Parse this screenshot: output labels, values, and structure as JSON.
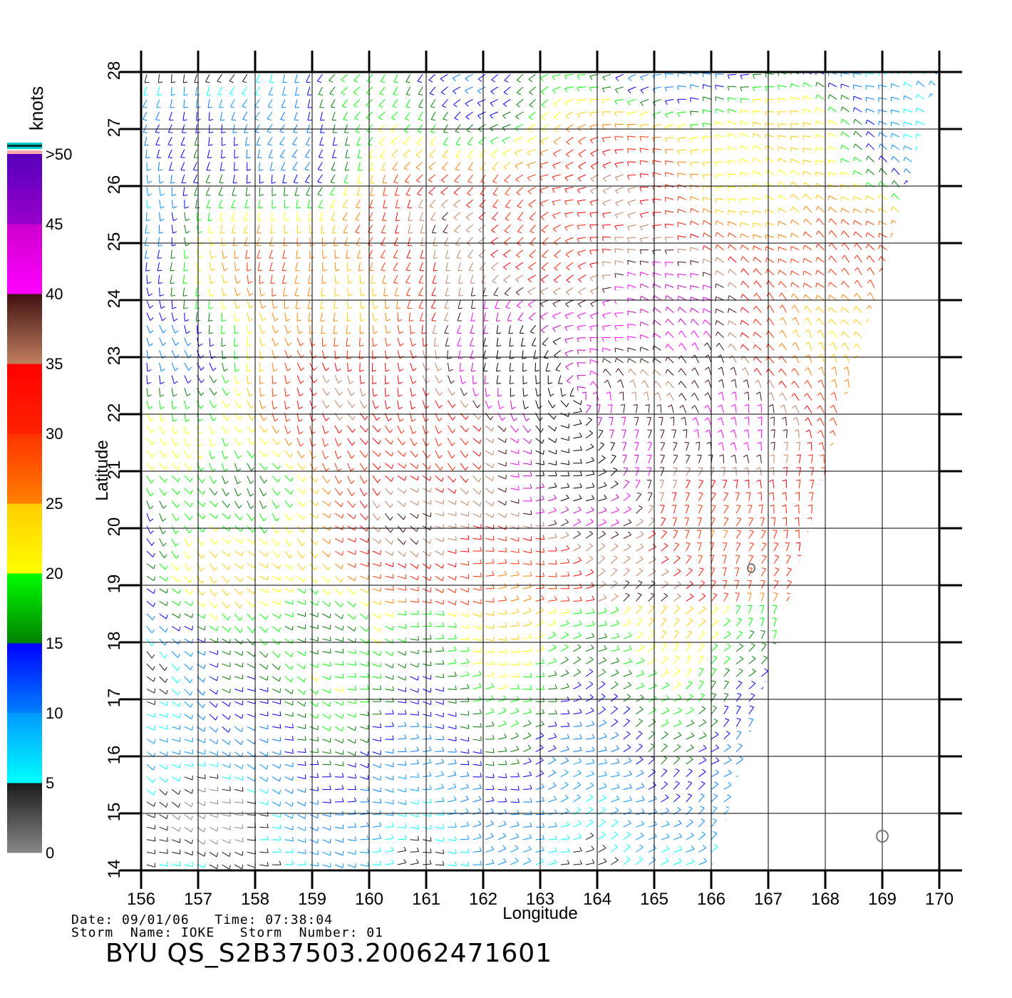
{
  "chart_data": {
    "type": "wind-barb-map",
    "xlabel": "Longitude",
    "ylabel": "Latitude",
    "xlim": [
      156,
      170
    ],
    "ylim": [
      14,
      28
    ],
    "xticks": [
      156,
      157,
      158,
      159,
      160,
      161,
      162,
      163,
      164,
      165,
      166,
      167,
      168,
      169,
      170
    ],
    "yticks": [
      14,
      15,
      16,
      17,
      18,
      19,
      20,
      21,
      22,
      23,
      24,
      25,
      26,
      27,
      28
    ],
    "grid": true,
    "colorbar": {
      "unit": "knots",
      "labels": [
        "0",
        "5",
        "10",
        "15",
        "20",
        "25",
        "30",
        "35",
        "40",
        "45",
        ">50"
      ],
      "segments": [
        {
          "from": 0,
          "to": 5,
          "colors": [
            "#888888",
            "#1a1a1a"
          ]
        },
        {
          "from": 5,
          "to": 10,
          "colors": [
            "#00ffff",
            "#0099ff"
          ]
        },
        {
          "from": 10,
          "to": 15,
          "colors": [
            "#0080ff",
            "#0000ff"
          ]
        },
        {
          "from": 15,
          "to": 20,
          "colors": [
            "#008000",
            "#00ff00"
          ]
        },
        {
          "from": 20,
          "to": 25,
          "colors": [
            "#ffff00",
            "#ffcc00"
          ]
        },
        {
          "from": 25,
          "to": 30,
          "colors": [
            "#ff8000",
            "#ff3300"
          ]
        },
        {
          "from": 30,
          "to": 35,
          "colors": [
            "#ff2200",
            "#ff0000"
          ]
        },
        {
          "from": 35,
          "to": 40,
          "colors": [
            "#c08060",
            "#401010"
          ]
        },
        {
          "from": 40,
          "to": 45,
          "colors": [
            "#ff00ff",
            "#cc00cc"
          ]
        },
        {
          "from": 45,
          "to": 50,
          "colors": [
            "#9900cc",
            "#5500bb"
          ]
        }
      ],
      "overflow_colors": [
        "#ffaaaa",
        "#00cccc",
        "#003333"
      ]
    },
    "swath_edge": [
      [
        156,
        14
      ],
      [
        156,
        28
      ],
      [
        170,
        28
      ],
      [
        166,
        14
      ]
    ],
    "storm_center": {
      "lon": 163.7,
      "lat": 22.3
    },
    "islands": [
      {
        "lon": 166.7,
        "lat": 19.3
      },
      {
        "lon": 169.0,
        "lat": 14.6
      }
    ]
  },
  "footer": {
    "line1": "Date: 09/01/06   Time: 07:38:04",
    "line2": "Storm  Name: IOKE   Storm  Number: 01",
    "product": "BYU  QS_S2B37503.20062471601"
  }
}
